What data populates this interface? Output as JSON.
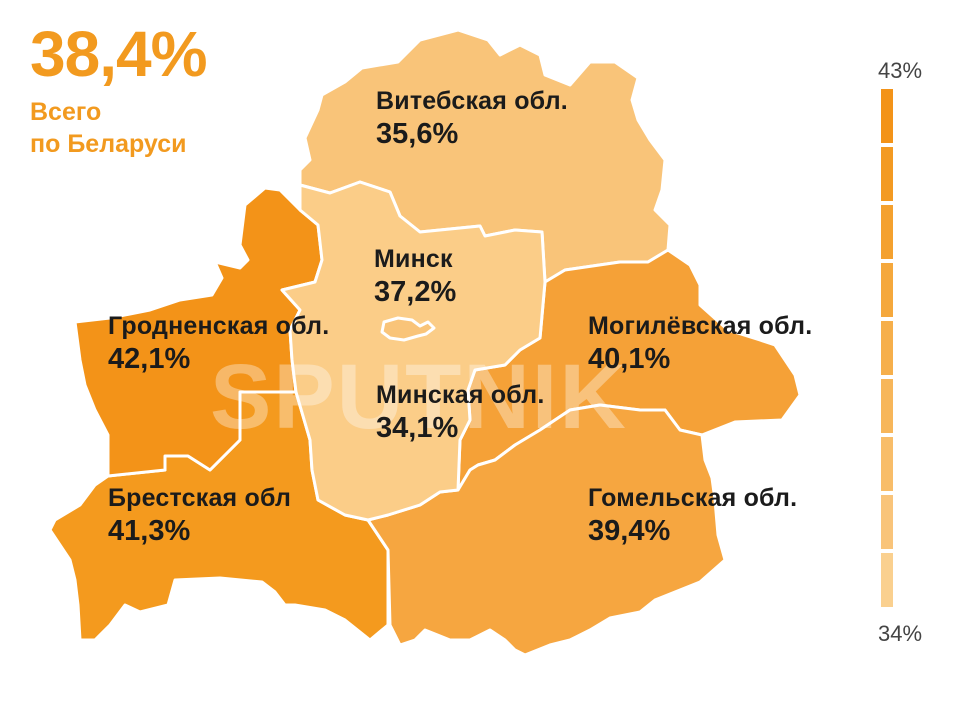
{
  "total": {
    "value": "38,4%",
    "line1": "Всего",
    "line2": "по Беларуси"
  },
  "legend": {
    "max_label": "43%",
    "min_label": "34%",
    "scale_colors": [
      "#f39318",
      "#f39a22",
      "#f4a12f",
      "#f5a83c",
      "#f6af4b",
      "#f7b65a",
      "#f8bd69",
      "#f9c47a",
      "#fad08f"
    ]
  },
  "regions": {
    "vitebsk": {
      "name": "Витебская обл.",
      "value": "35,6%",
      "color": "#f9c479"
    },
    "minsk_city": {
      "name": "Минск",
      "value": "37,2%",
      "color": "#f9c479"
    },
    "minsk_obl": {
      "name": "Минская обл.",
      "value": "34,1%",
      "color": "#fbcd88"
    },
    "grodno": {
      "name": "Гродненская обл.",
      "value": "42,1%",
      "color": "#f39318"
    },
    "brest": {
      "name": "Брестская обл",
      "value": "41,3%",
      "color": "#f49a1e"
    },
    "mogilev": {
      "name": "Могилёвская обл.",
      "value": "40,1%",
      "color": "#f5a137"
    },
    "gomel": {
      "name": "Гомельская обл.",
      "value": "39,4%",
      "color": "#f6a640"
    }
  },
  "watermark": "SPUTNIK"
}
